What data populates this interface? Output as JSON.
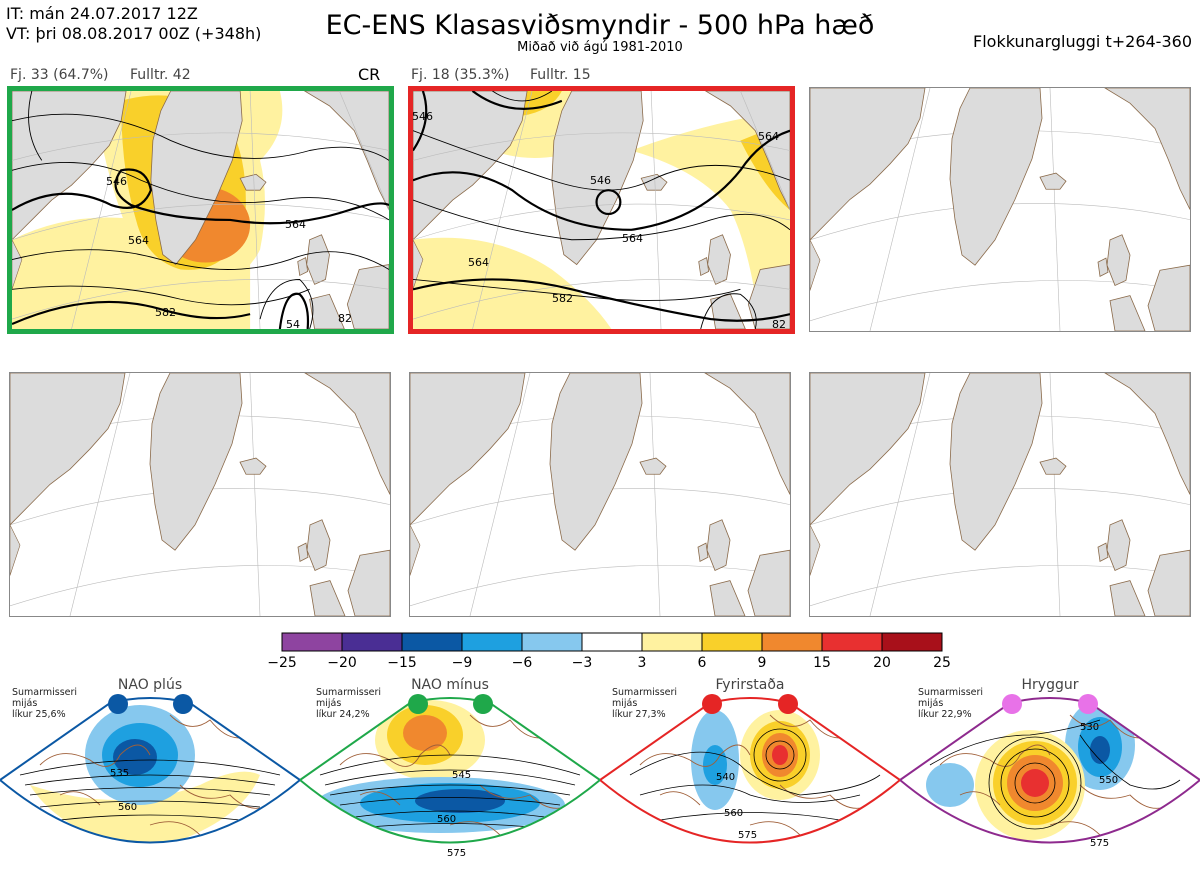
{
  "header": {
    "it_line": "IT: mán 24.07.2017 12Z",
    "vt_line": "VT: þri 08.08.2017 00Z  (+348h)",
    "title": "EC-ENS Klasasviðsmyndir - 500 hPa hæð",
    "subtitle": "Miðað við ágú 1981-2010",
    "window": "Flokkunargluggi t+264-360"
  },
  "panels": [
    {
      "label_fj": "Fj. 33 (64.7%)",
      "label_full": "Fulltr. 42",
      "regime_code": "CR",
      "border": "#1fa84a",
      "contour_labels": [
        "546",
        "564",
        "564",
        "582",
        "82",
        "54"
      ]
    },
    {
      "label_fj": "Fj. 18 (35.3%)",
      "label_full": "Fulltr. 15",
      "border": "#e52525",
      "contour_labels": [
        "546",
        "564",
        "564",
        "564",
        "582",
        "546",
        "82"
      ]
    }
  ],
  "colorbar": {
    "ticks": [
      "−25",
      "−20",
      "−15",
      "−9",
      "−6",
      "−3",
      "3",
      "6",
      "9",
      "15",
      "20",
      "25"
    ],
    "colors": [
      "#8e44a0",
      "#4a2e94",
      "#0b58a4",
      "#1ea0e0",
      "#86c8ee",
      "#ffffff",
      "#fff2a0",
      "#f9d02a",
      "#f0882e",
      "#e83030",
      "#a8101a"
    ]
  },
  "regimes": [
    {
      "name": "NAO plús",
      "info": [
        "Sumarmisseri",
        "mijás",
        "líkur 25,6%"
      ],
      "color": "#0b58a4",
      "labels": [
        "535",
        "560"
      ]
    },
    {
      "name": "NAO mínus",
      "info": [
        "Sumarmisseri",
        "mijás",
        "líkur 24,2%"
      ],
      "color": "#1fa84a",
      "labels": [
        "545",
        "560",
        "575"
      ]
    },
    {
      "name": "Fyrirstaða",
      "info": [
        "Sumarmisseri",
        "mijás",
        "líkur 27,3%"
      ],
      "color": "#e52525",
      "labels": [
        "540",
        "560",
        "575"
      ]
    },
    {
      "name": "Hryggur",
      "info": [
        "Sumarmisseri",
        "mijás",
        "líkur 22,9%"
      ],
      "color": "#8e2a8e",
      "dot_color": "#e872e8",
      "labels": [
        "530",
        "550",
        "575"
      ]
    }
  ]
}
